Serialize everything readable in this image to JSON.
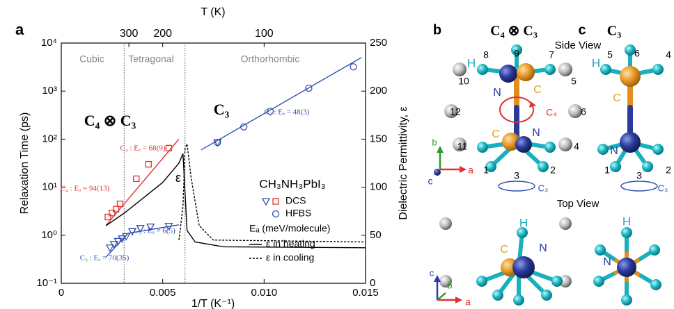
{
  "chart_data": {
    "type": "scatter",
    "y_scale": "log",
    "x2_scale": "reciprocal",
    "xlabel": "1/T (K⁻¹)",
    "x2label": "T (K)",
    "ylabel": "Relaxation Time (ps)",
    "y2label": "Dielectric Permittivity, ε",
    "xlim": [
      0,
      0.015
    ],
    "xticks": [
      0,
      0.005,
      {
        "value": 0.01,
        "label": "0.010"
      },
      0.015
    ],
    "x2ticks": [
      300,
      200,
      100
    ],
    "ylim": [
      0.1,
      10000
    ],
    "yticks": [
      {
        "value": 0.1,
        "label": "10⁻¹"
      },
      {
        "value": 1,
        "label": "10⁰"
      },
      {
        "value": 10,
        "label": "10¹"
      },
      {
        "value": 100,
        "label": "10²"
      },
      {
        "value": 1000,
        "label": "10³"
      },
      {
        "value": 10000,
        "label": "10⁴"
      }
    ],
    "y2lim": [
      0,
      250
    ],
    "y2ticks": [
      0,
      50,
      100,
      150,
      200,
      250
    ],
    "phase_boundaries": [
      0.0031,
      0.0061
    ],
    "phases": [
      "Cubic",
      "Tetragonal",
      "Orthorhombic"
    ],
    "series": [
      {
        "marker": "square",
        "color": "#e03030",
        "x": [
          0.0023,
          0.0025,
          0.0027,
          0.0029,
          0.0037,
          0.0043,
          0.0053
        ],
        "values": [
          2.4,
          2.9,
          3.5,
          4.5,
          15,
          30,
          65
        ]
      },
      {
        "marker": "triangle",
        "color": "#3050b0",
        "x": [
          0.0024,
          0.0026,
          0.0028,
          0.003,
          0.0032,
          0.0035,
          0.0039,
          0.0044,
          0.0053,
          0.0077
        ],
        "values": [
          0.55,
          0.65,
          0.75,
          0.85,
          0.95,
          1.2,
          1.4,
          1.5,
          1.55,
          85
        ]
      },
      {
        "marker": "circle",
        "color": "#3050b0",
        "x": [
          0.0077,
          0.009,
          0.0103,
          0.0122,
          0.0144
        ],
        "values": [
          85,
          180,
          380,
          1150,
          3200
        ]
      },
      {
        "style": "solid",
        "color": "#e03030",
        "x": [
          0.0022,
          0.0058
        ],
        "values": [
          1.6,
          100
        ]
      },
      {
        "style": "solid",
        "color": "#3050b0",
        "x": [
          0.0022,
          0.0033
        ],
        "values": [
          0.35,
          1.1
        ]
      },
      {
        "style": "solid",
        "color": "#3050b0",
        "x": [
          0.0033,
          0.0058
        ],
        "values": [
          1.1,
          1.65
        ]
      },
      {
        "style": "solid",
        "color": "#3050b0",
        "x": [
          0.0069,
          0.0148
        ],
        "values": [
          60,
          5000
        ]
      },
      {
        "style": "solid",
        "color": "#000000",
        "axis": "y2",
        "x": [
          0.0022,
          0.0031,
          0.004,
          0.005,
          0.0058,
          0.006,
          0.0062,
          0.0066,
          0.008,
          0.015
        ],
        "values": [
          60,
          73,
          88,
          105,
          125,
          135,
          55,
          43,
          38,
          37
        ]
      },
      {
        "style": "dashed",
        "color": "#000000",
        "axis": "y2",
        "x": [
          0.0058,
          0.006,
          0.0061,
          0.0062,
          0.0064,
          0.0068,
          0.0075,
          0.015
        ],
        "values": [
          45,
          80,
          140,
          145,
          110,
          60,
          45,
          43
        ]
      }
    ],
    "legend": [
      "DCS",
      "HFBS",
      "Eₐ (meV/molecule)",
      "ε  in heating",
      "ε  in cooling"
    ],
    "annotations": [
      "C₄ ⊗ C₃",
      "C₃",
      "ε",
      "C₄ : Eₐ = 68(9)",
      "C₄ : Eₐ = 94(13)",
      "C₃ : Eₐ = 48(3)",
      "C₃ : Eₐ = 6(5)",
      "C₃ : Eₐ = 70(35)",
      "CH₃NH₃PbI₃"
    ],
    "panel": "a"
  },
  "diagram": {
    "labels": [
      "b",
      "C₄ ⊗ C₃",
      "Side View",
      "H",
      "8",
      "9",
      "7",
      "10",
      "5",
      "N",
      "C",
      "C₄",
      "12",
      "6",
      "C",
      "N",
      "11",
      "4",
      "1",
      "3",
      "2",
      "C₃",
      "Top View",
      "H",
      "C",
      "N",
      "b",
      "a",
      "c",
      "c",
      "b",
      "a",
      "c",
      "C₃",
      "H",
      "5",
      "6",
      "4",
      "C",
      "N",
      "1",
      "3",
      "2",
      "C₃",
      "H",
      "N"
    ]
  }
}
